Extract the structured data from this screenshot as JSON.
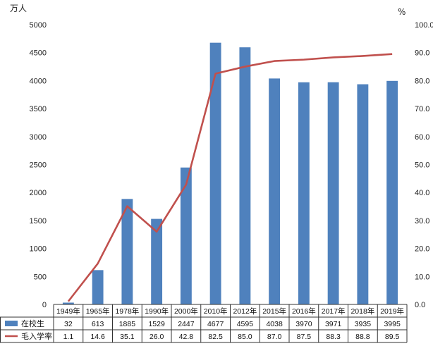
{
  "chart_data": {
    "type": "bar",
    "categories": [
      "1949年",
      "1965年",
      "1978年",
      "1990年",
      "2000年",
      "2010年",
      "2012年",
      "2015年",
      "2016年",
      "2017年",
      "2018年",
      "2019年"
    ],
    "series": [
      {
        "name": "在校生",
        "type": "bar",
        "axis": "left",
        "color": "#4F81BD",
        "values": [
          32,
          613,
          1885,
          1529,
          2447,
          4677,
          4595,
          4038,
          3970,
          3971,
          3935,
          3995
        ],
        "labels": [
          "32",
          "613",
          "1885",
          "1529",
          "2447",
          "4677",
          "4595",
          "4038",
          "3970",
          "3971",
          "3935",
          "3995"
        ]
      },
      {
        "name": "毛入学率",
        "type": "line",
        "axis": "right",
        "color": "#C0504D",
        "values": [
          1.1,
          14.6,
          35.1,
          26.0,
          42.8,
          82.5,
          85.0,
          87.0,
          87.5,
          88.3,
          88.8,
          89.5
        ],
        "labels": [
          "1.1",
          "14.6",
          "35.1",
          "26.0",
          "42.8",
          "82.5",
          "85.0",
          "87.0",
          "87.5",
          "88.3",
          "88.8",
          "89.5"
        ]
      }
    ],
    "y_left": {
      "unit": "万人",
      "ylim": [
        0,
        5000
      ],
      "ticks": [
        "0",
        "500",
        "1000",
        "1500",
        "2000",
        "2500",
        "3000",
        "3500",
        "4000",
        "4500",
        "5000"
      ]
    },
    "y_right": {
      "unit": "%",
      "ylim": [
        0,
        100
      ],
      "ticks": [
        "0.0",
        "10.0",
        "20.0",
        "30.0",
        "40.0",
        "50.0",
        "60.0",
        "70.0",
        "80.0",
        "90.0",
        "100.0"
      ]
    },
    "data_table": true,
    "grid": false
  }
}
